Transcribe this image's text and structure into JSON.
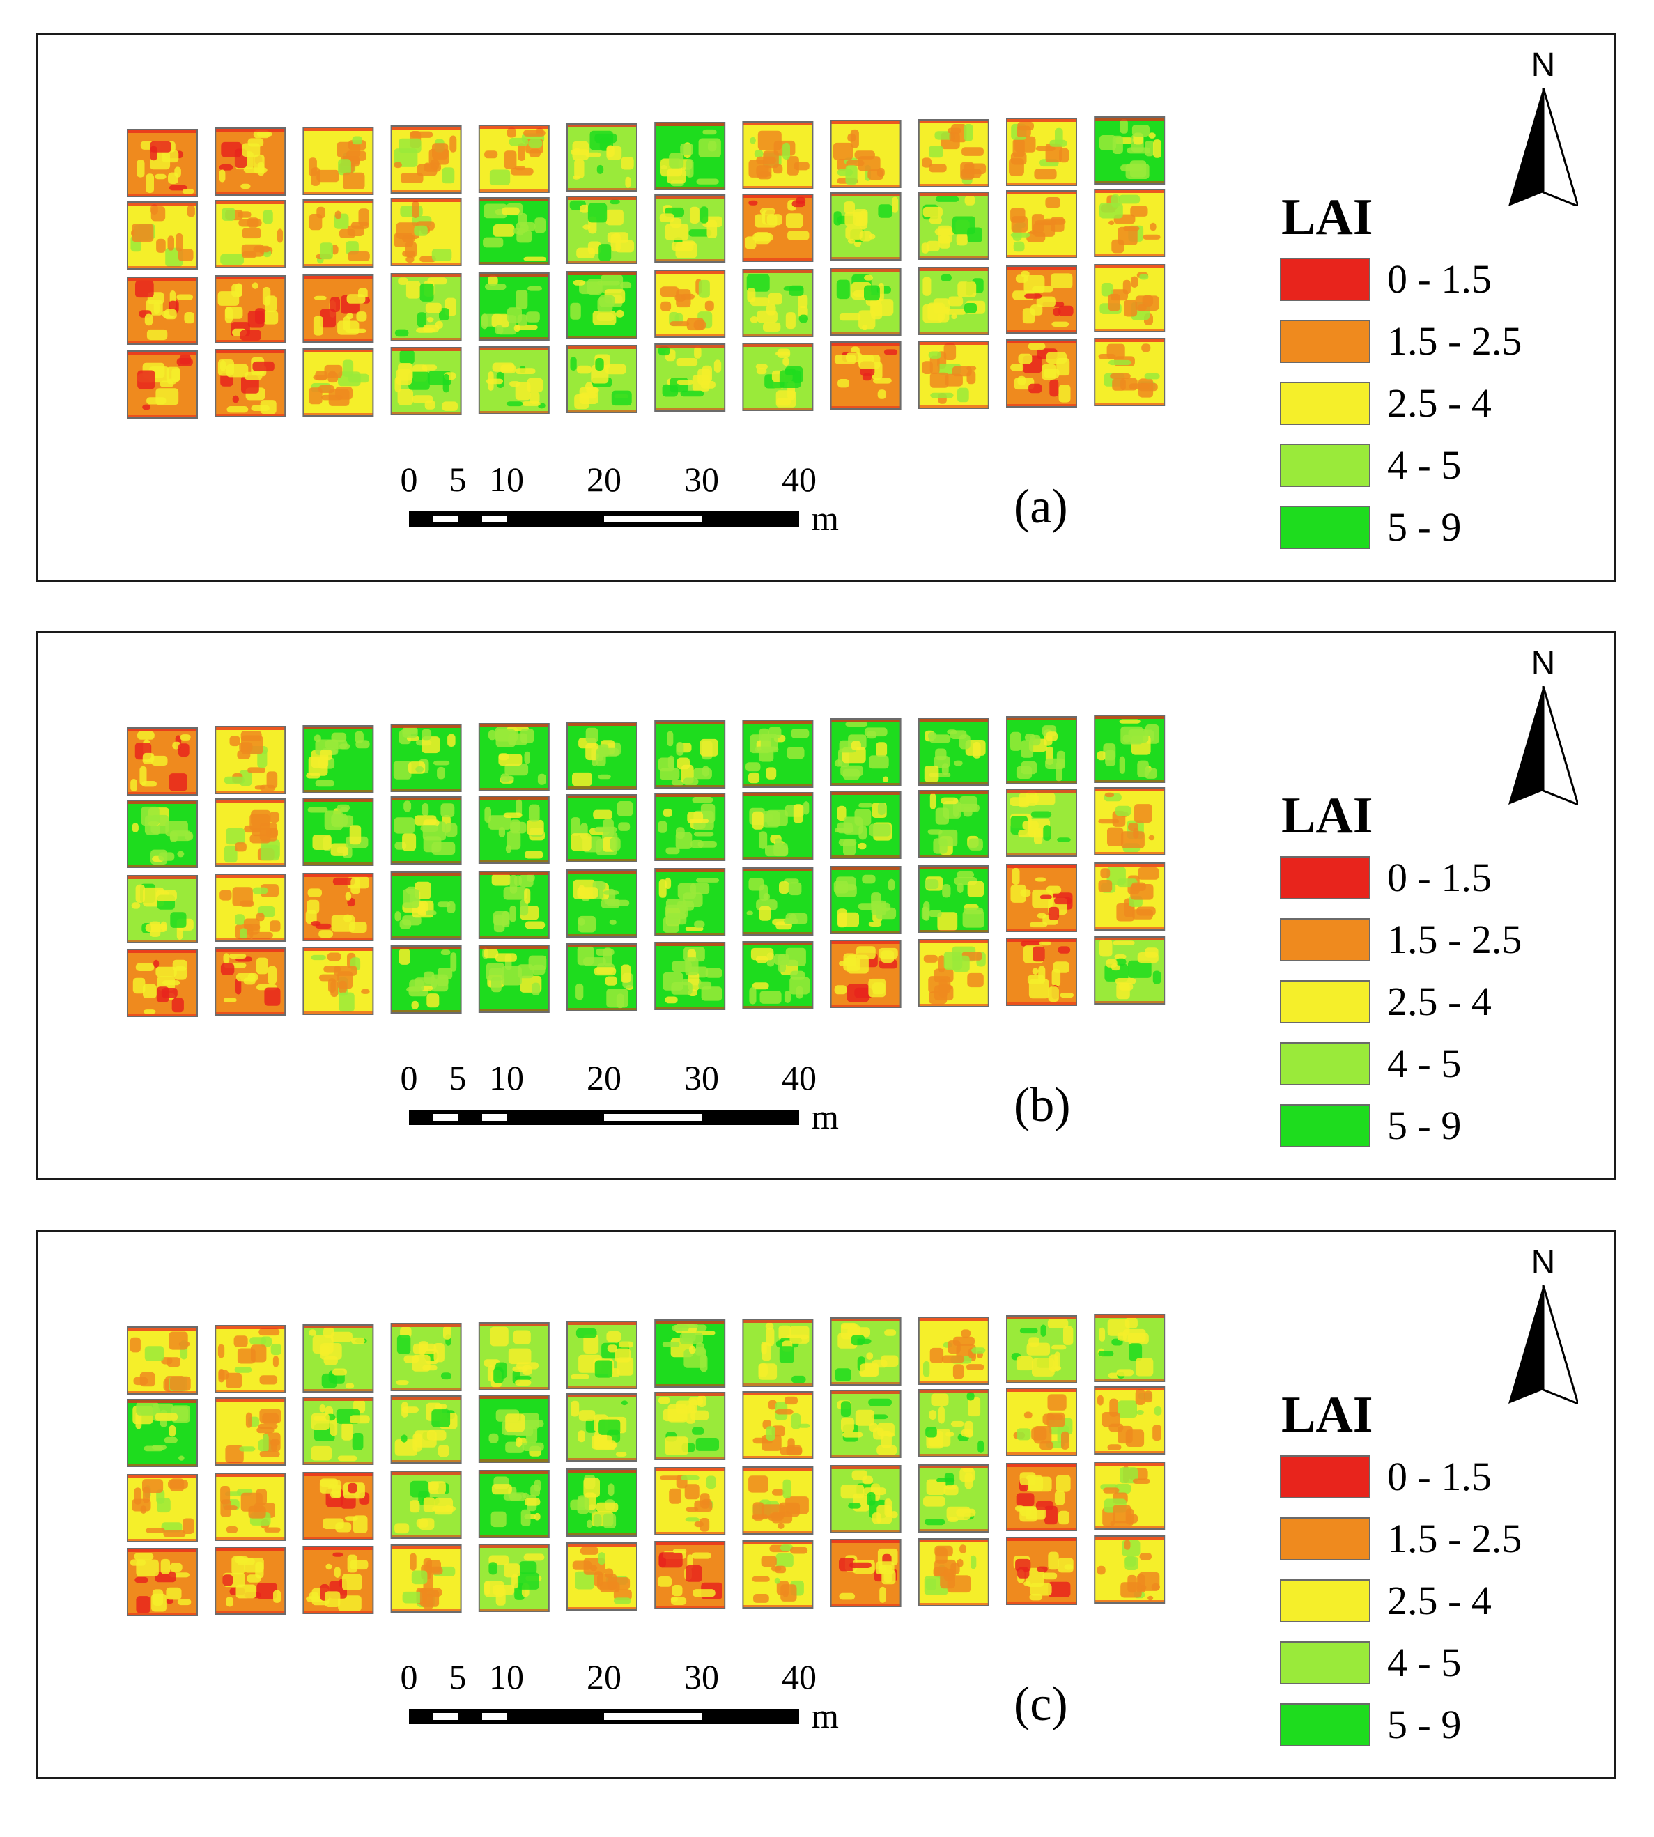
{
  "figure": {
    "panels": [
      {
        "label": "(a)",
        "plot_rows": [
          [
            "orange",
            "orange",
            "yellow",
            "yellow",
            "yellow",
            "lightgreen",
            "green",
            "yellow",
            "yellow",
            "yellow",
            "yellow",
            "green"
          ],
          [
            "yellow",
            "yellow",
            "yellow",
            "yellow",
            "green",
            "lightgreen",
            "lightgreen",
            "orange",
            "lightgreen",
            "lightgreen",
            "yellow",
            "yellow"
          ],
          [
            "orange",
            "orange",
            "orange",
            "lightgreen",
            "green",
            "green",
            "yellow",
            "lightgreen",
            "lightgreen",
            "lightgreen",
            "orange",
            "yellow"
          ],
          [
            "orange",
            "orange",
            "yellow",
            "lightgreen",
            "lightgreen",
            "lightgreen",
            "lightgreen",
            "lightgreen",
            "orange",
            "yellow",
            "orange",
            "yellow"
          ]
        ]
      },
      {
        "label": "(b)",
        "plot_rows": [
          [
            "orange",
            "yellow",
            "green",
            "green",
            "green",
            "green",
            "green",
            "green",
            "green",
            "green",
            "green",
            "green"
          ],
          [
            "green",
            "yellow",
            "green",
            "green",
            "green",
            "green",
            "green",
            "green",
            "green",
            "green",
            "lightgreen",
            "yellow"
          ],
          [
            "lightgreen",
            "yellow",
            "orange",
            "green",
            "green",
            "green",
            "green",
            "green",
            "green",
            "green",
            "orange",
            "yellow"
          ],
          [
            "orange",
            "orange",
            "yellow",
            "green",
            "green",
            "green",
            "green",
            "green",
            "orange",
            "yellow",
            "orange",
            "lightgreen"
          ]
        ]
      },
      {
        "label": "(c)",
        "plot_rows": [
          [
            "yellow",
            "yellow",
            "lightgreen",
            "lightgreen",
            "lightgreen",
            "lightgreen",
            "green",
            "lightgreen",
            "lightgreen",
            "yellow",
            "lightgreen",
            "lightgreen"
          ],
          [
            "green",
            "yellow",
            "lightgreen",
            "lightgreen",
            "green",
            "lightgreen",
            "lightgreen",
            "yellow",
            "lightgreen",
            "lightgreen",
            "yellow",
            "yellow"
          ],
          [
            "yellow",
            "yellow",
            "orange",
            "lightgreen",
            "green",
            "green",
            "yellow",
            "yellow",
            "lightgreen",
            "lightgreen",
            "orange",
            "yellow"
          ],
          [
            "orange",
            "orange",
            "orange",
            "yellow",
            "lightgreen",
            "yellow",
            "orange",
            "yellow",
            "orange",
            "yellow",
            "orange",
            "yellow"
          ]
        ]
      }
    ],
    "north_arrow": {
      "letter": "N"
    },
    "legend": {
      "title": "LAI",
      "classes": [
        {
          "range": "0 - 1.5",
          "color": "#e8241c"
        },
        {
          "range": "1.5 - 2.5",
          "color": "#ef8a1e"
        },
        {
          "range": "2.5 - 4",
          "color": "#f5ef2a"
        },
        {
          "range": "4 - 5",
          "color": "#9aea3a"
        },
        {
          "range": "5 - 9",
          "color": "#1edc1e"
        }
      ]
    },
    "scale_bar": {
      "ticks": [
        {
          "label": "0",
          "value": 0
        },
        {
          "label": "5",
          "value": 5
        },
        {
          "label": "10",
          "value": 10
        },
        {
          "label": "20",
          "value": 20
        },
        {
          "label": "30",
          "value": 30
        },
        {
          "label": "40",
          "value": 40
        }
      ],
      "unit": "m"
    },
    "colors": {
      "orange": "#ef8a1e",
      "yellow": "#f5ef2a",
      "lightgreen": "#9aea3a",
      "green": "#1edc1e",
      "red": "#e8241c"
    }
  }
}
